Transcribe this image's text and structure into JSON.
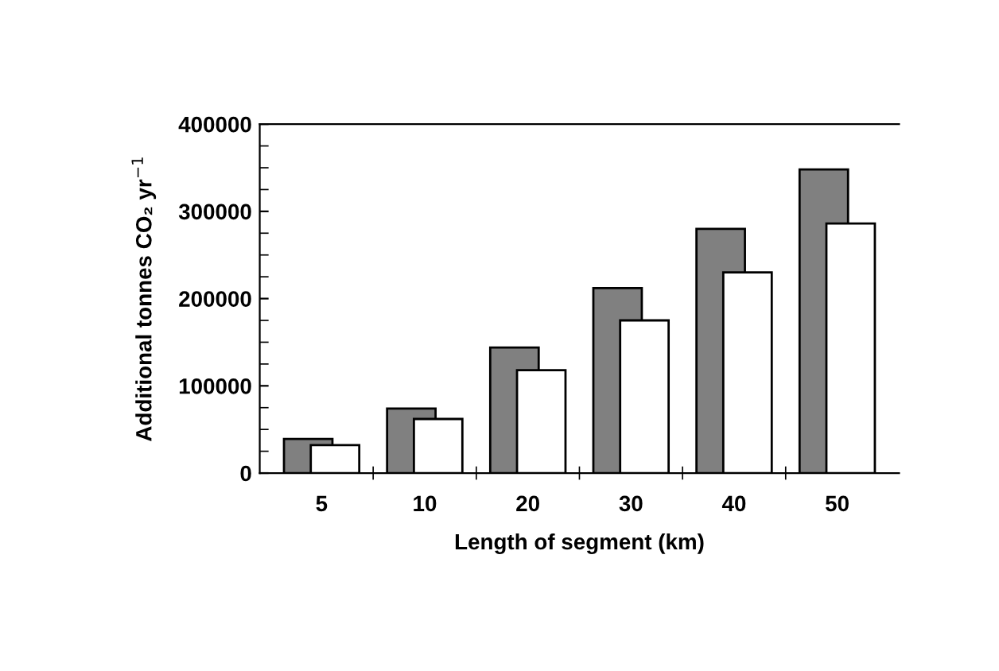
{
  "chart_data": {
    "type": "bar",
    "xlabel": "Length of segment (km)",
    "ylabel": "Additional tonnes CO₂ yr$^{−1}$",
    "categories": [
      "5",
      "10",
      "20",
      "30",
      "40",
      "50"
    ],
    "series": [
      {
        "color": "#808080",
        "values": [
          39000,
          74000,
          144000,
          212000,
          280000,
          348000
        ]
      },
      {
        "color": "#ffffff",
        "values": [
          32000,
          62000,
          118000,
          175000,
          230000,
          286000
        ]
      }
    ],
    "ylim": [
      0,
      400000
    ],
    "yticks": [
      0,
      100000,
      200000,
      300000,
      400000
    ],
    "grid": false
  }
}
